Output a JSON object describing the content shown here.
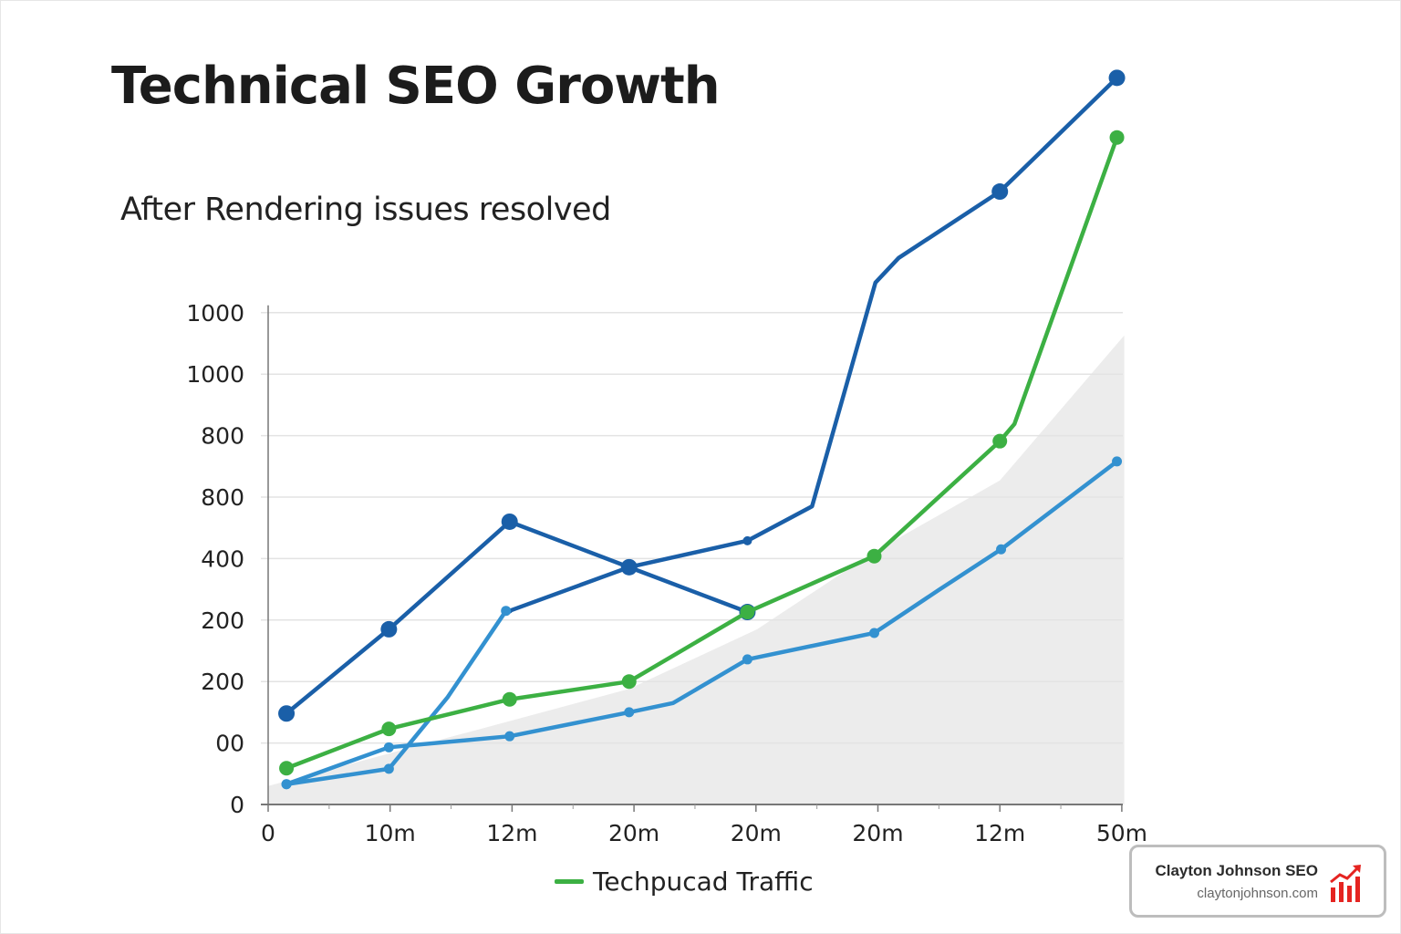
{
  "chart_data": {
    "type": "line",
    "title": "Technical SEO Growth",
    "subtitle": "After Rendering issues resolved",
    "x_tick_labels": [
      "0",
      "10m",
      "12m",
      "20m",
      "20m",
      "20m",
      "12m",
      "50m"
    ],
    "y_tick_labels": [
      "0",
      "00",
      "200",
      "200",
      "400",
      "800",
      "800",
      "1000",
      "1000"
    ],
    "note": "Values given as [x tick index, y gridline level]; axis tick labels are non-monotonic as printed",
    "grid": true,
    "legend": {
      "position": "bottom",
      "entries": [
        {
          "label": "Techpucad Traffic",
          "color": "#3cb043"
        }
      ]
    },
    "series": [
      {
        "color": "#1a5fa8",
        "marker": "large",
        "points": [
          [
            0.15,
            1.48
          ],
          [
            0.99,
            2.85
          ],
          [
            1.98,
            4.6
          ],
          [
            2.96,
            3.86
          ],
          [
            3.93,
            3.13
          ]
        ]
      },
      {
        "color": "#1a5fa8",
        "marker": "mixed",
        "points": [
          [
            1.98,
            3.15
          ],
          [
            2.96,
            3.86
          ],
          [
            3.93,
            4.29
          ],
          [
            4.46,
            4.85
          ],
          [
            4.98,
            8.49
          ],
          [
            5.17,
            8.89
          ],
          [
            6.0,
            9.97
          ],
          [
            6.96,
            11.82
          ]
        ]
      },
      {
        "color": "#3391d0",
        "marker": "small",
        "points": [
          [
            0.15,
            0.33
          ],
          [
            0.99,
            0.58
          ],
          [
            1.47,
            1.74
          ],
          [
            1.95,
            3.15
          ]
        ]
      },
      {
        "color": "#3391d0",
        "marker": "small",
        "points": [
          [
            0.15,
            0.33
          ],
          [
            0.99,
            0.93
          ],
          [
            1.98,
            1.11
          ],
          [
            2.96,
            1.5
          ],
          [
            3.32,
            1.65
          ],
          [
            3.93,
            2.36
          ],
          [
            4.97,
            2.79
          ],
          [
            5.5,
            3.49
          ],
          [
            6.01,
            4.15
          ],
          [
            6.96,
            5.58
          ]
        ]
      },
      {
        "color": "#3cb043",
        "marker": "medium",
        "points": [
          [
            0.15,
            0.59
          ],
          [
            0.99,
            1.23
          ],
          [
            1.98,
            1.71
          ],
          [
            2.96,
            2.0
          ],
          [
            3.93,
            3.13
          ],
          [
            4.97,
            4.04
          ],
          [
            6.0,
            5.91
          ],
          [
            6.12,
            6.19
          ],
          [
            6.96,
            10.85
          ]
        ]
      }
    ],
    "area": {
      "color": "#ececec",
      "points": [
        [
          0,
          0.3
        ],
        [
          2.96,
          1.88
        ],
        [
          4.01,
          2.85
        ],
        [
          4.97,
          4.11
        ],
        [
          6.0,
          5.27
        ],
        [
          7.02,
          7.63
        ]
      ]
    }
  },
  "brand": {
    "name": "Clayton Johnson SEO",
    "url": "claytonjohnson.com",
    "icon": "bar-chart-trend-up-icon",
    "color": "#e52421"
  }
}
